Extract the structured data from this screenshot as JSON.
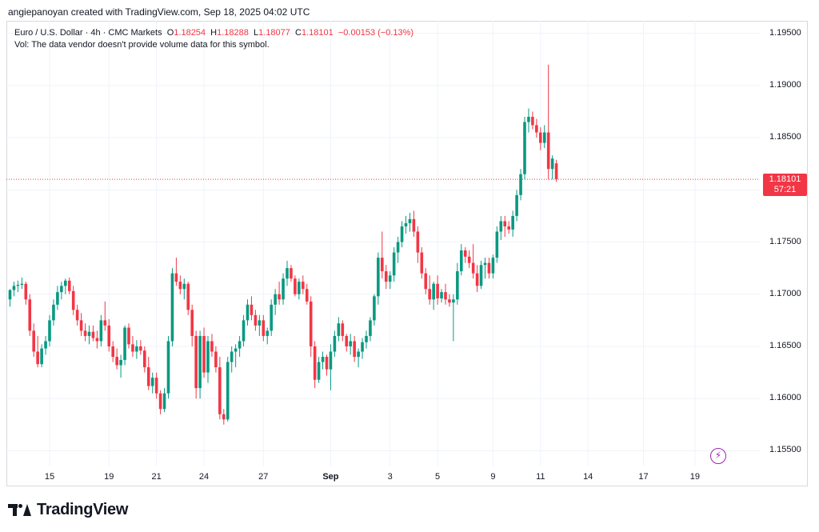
{
  "header": {
    "author_line": "angiepanoyan created with TradingView.com, Sep 18, 2025 04:02 UTC"
  },
  "legend": {
    "symbol": "Euro / U.S. Dollar · 4h · CMC Markets",
    "o_label": "O",
    "o_value": "1.18254",
    "h_label": "H",
    "h_value": "1.18288",
    "l_label": "L",
    "l_value": "1.18077",
    "c_label": "C",
    "c_value": "1.18101",
    "change": "−0.00153 (−0.13%)",
    "volume_note": "Vol: The data vendor doesn't provide volume data for this symbol."
  },
  "price_tag": {
    "price": "1.18101",
    "countdown": "57:21"
  },
  "brand": {
    "name": "TradingView"
  },
  "colors": {
    "up": "#089981",
    "down": "#f23645",
    "grid": "#f0f3fa",
    "accent": "#9c27b0"
  },
  "chart_data": {
    "type": "candlestick",
    "title": "Euro / U.S. Dollar · 4h · CMC Markets",
    "y_axis": {
      "ticks": [
        "1.19500",
        "1.19000",
        "1.18500",
        "1.18000",
        "1.17500",
        "1.17000",
        "1.16500",
        "1.16000",
        "1.15500"
      ],
      "ylim": [
        1.1535,
        1.1962
      ]
    },
    "x_axis": {
      "ticks": [
        {
          "label": "15",
          "i": 10,
          "bold": false
        },
        {
          "label": "19",
          "i": 25,
          "bold": false
        },
        {
          "label": "21",
          "i": 37,
          "bold": false
        },
        {
          "label": "24",
          "i": 49,
          "bold": false
        },
        {
          "label": "27",
          "i": 64,
          "bold": false
        },
        {
          "label": "Sep",
          "i": 81,
          "bold": true
        },
        {
          "label": "3",
          "i": 96,
          "bold": false
        },
        {
          "label": "5",
          "i": 108,
          "bold": false
        },
        {
          "label": "9",
          "i": 122,
          "bold": false
        },
        {
          "label": "11",
          "i": 134,
          "bold": false
        },
        {
          "label": "14",
          "i": 146,
          "bold": false
        },
        {
          "label": "17",
          "i": 160,
          "bold": false
        },
        {
          "label": "19",
          "i": 173,
          "bold": false
        }
      ]
    },
    "last_price": 1.18101,
    "candles": [
      [
        1.1695,
        1.1705,
        1.1688,
        1.1704
      ],
      [
        1.1704,
        1.1712,
        1.1698,
        1.1708
      ],
      [
        1.1708,
        1.1713,
        1.1702,
        1.1709
      ],
      [
        1.1709,
        1.1716,
        1.1705,
        1.171
      ],
      [
        1.171,
        1.1712,
        1.169,
        1.1695
      ],
      [
        1.1695,
        1.17,
        1.166,
        1.1665
      ],
      [
        1.1665,
        1.1672,
        1.164,
        1.1645
      ],
      [
        1.1645,
        1.166,
        1.163,
        1.1633
      ],
      [
        1.1633,
        1.1652,
        1.163,
        1.1648
      ],
      [
        1.1648,
        1.166,
        1.1642,
        1.1655
      ],
      [
        1.1655,
        1.168,
        1.165,
        1.1675
      ],
      [
        1.1675,
        1.1695,
        1.167,
        1.169
      ],
      [
        1.169,
        1.1708,
        1.1685,
        1.1702
      ],
      [
        1.1702,
        1.1712,
        1.1695,
        1.1708
      ],
      [
        1.1708,
        1.1715,
        1.17,
        1.1713
      ],
      [
        1.1713,
        1.1716,
        1.17,
        1.1703
      ],
      [
        1.1703,
        1.1708,
        1.168,
        1.1685
      ],
      [
        1.1685,
        1.169,
        1.167,
        1.1675
      ],
      [
        1.1675,
        1.1682,
        1.166,
        1.1665
      ],
      [
        1.1665,
        1.1672,
        1.1655,
        1.166
      ],
      [
        1.166,
        1.167,
        1.1652,
        1.1664
      ],
      [
        1.1664,
        1.167,
        1.1655,
        1.1658
      ],
      [
        1.1658,
        1.1665,
        1.1648,
        1.1655
      ],
      [
        1.1655,
        1.168,
        1.165,
        1.1675
      ],
      [
        1.1675,
        1.1693,
        1.1665,
        1.167
      ],
      [
        1.167,
        1.1676,
        1.1645,
        1.165
      ],
      [
        1.165,
        1.1655,
        1.1635,
        1.164
      ],
      [
        1.164,
        1.1648,
        1.1628,
        1.1632
      ],
      [
        1.1632,
        1.1642,
        1.162,
        1.1637
      ],
      [
        1.1637,
        1.167,
        1.1632,
        1.1668
      ],
      [
        1.1668,
        1.1672,
        1.1648,
        1.1652
      ],
      [
        1.1652,
        1.166,
        1.164,
        1.1645
      ],
      [
        1.1645,
        1.1656,
        1.1638,
        1.165
      ],
      [
        1.165,
        1.1656,
        1.1642,
        1.1646
      ],
      [
        1.1646,
        1.165,
        1.1625,
        1.163
      ],
      [
        1.163,
        1.164,
        1.1608,
        1.1612
      ],
      [
        1.1612,
        1.1625,
        1.1605,
        1.162
      ],
      [
        1.162,
        1.1625,
        1.16,
        1.1605
      ],
      [
        1.1605,
        1.1608,
        1.1585,
        1.159
      ],
      [
        1.159,
        1.161,
        1.1587,
        1.1605
      ],
      [
        1.1605,
        1.166,
        1.16,
        1.1655
      ],
      [
        1.1655,
        1.1725,
        1.165,
        1.172
      ],
      [
        1.172,
        1.1735,
        1.1708,
        1.1712
      ],
      [
        1.1712,
        1.1718,
        1.17,
        1.1705
      ],
      [
        1.1705,
        1.1715,
        1.1695,
        1.171
      ],
      [
        1.171,
        1.1712,
        1.168,
        1.1685
      ],
      [
        1.1685,
        1.169,
        1.165,
        1.166
      ],
      [
        1.166,
        1.1665,
        1.16,
        1.161
      ],
      [
        1.161,
        1.1665,
        1.16,
        1.166
      ],
      [
        1.166,
        1.1668,
        1.162,
        1.1625
      ],
      [
        1.1625,
        1.166,
        1.1615,
        1.1655
      ],
      [
        1.1655,
        1.1662,
        1.164,
        1.1645
      ],
      [
        1.1645,
        1.165,
        1.1625,
        1.163
      ],
      [
        1.163,
        1.164,
        1.158,
        1.1585
      ],
      [
        1.1585,
        1.159,
        1.1575,
        1.158
      ],
      [
        1.158,
        1.164,
        1.1578,
        1.1635
      ],
      [
        1.1635,
        1.165,
        1.1625,
        1.1645
      ],
      [
        1.1645,
        1.1652,
        1.163,
        1.1648
      ],
      [
        1.1648,
        1.166,
        1.164,
        1.1655
      ],
      [
        1.1655,
        1.168,
        1.165,
        1.1675
      ],
      [
        1.1675,
        1.1695,
        1.167,
        1.169
      ],
      [
        1.169,
        1.1698,
        1.1675,
        1.168
      ],
      [
        1.168,
        1.1685,
        1.1665,
        1.167
      ],
      [
        1.167,
        1.168,
        1.166,
        1.1675
      ],
      [
        1.1675,
        1.168,
        1.1655,
        1.166
      ],
      [
        1.166,
        1.1668,
        1.1652,
        1.1665
      ],
      [
        1.1665,
        1.1695,
        1.166,
        1.169
      ],
      [
        1.169,
        1.1705,
        1.168,
        1.17
      ],
      [
        1.17,
        1.1712,
        1.169,
        1.1695
      ],
      [
        1.1695,
        1.172,
        1.169,
        1.1715
      ],
      [
        1.1715,
        1.1732,
        1.1708,
        1.1725
      ],
      [
        1.1725,
        1.1728,
        1.1712,
        1.1715
      ],
      [
        1.1715,
        1.1718,
        1.1698,
        1.17
      ],
      [
        1.17,
        1.1715,
        1.1695,
        1.1712
      ],
      [
        1.1712,
        1.1718,
        1.17,
        1.1705
      ],
      [
        1.1705,
        1.171,
        1.169,
        1.1693
      ],
      [
        1.1693,
        1.1698,
        1.164,
        1.165
      ],
      [
        1.165,
        1.1655,
        1.161,
        1.1618
      ],
      [
        1.1618,
        1.164,
        1.1615,
        1.1635
      ],
      [
        1.1635,
        1.1645,
        1.1628,
        1.164
      ],
      [
        1.164,
        1.1642,
        1.1622,
        1.1628
      ],
      [
        1.1628,
        1.1652,
        1.1608,
        1.1645
      ],
      [
        1.1645,
        1.1665,
        1.164,
        1.166
      ],
      [
        1.166,
        1.1678,
        1.1655,
        1.1672
      ],
      [
        1.1672,
        1.1675,
        1.1655,
        1.166
      ],
      [
        1.166,
        1.1662,
        1.1645,
        1.165
      ],
      [
        1.165,
        1.1662,
        1.1642,
        1.1655
      ],
      [
        1.1655,
        1.166,
        1.1635,
        1.164
      ],
      [
        1.164,
        1.1648,
        1.163,
        1.1645
      ],
      [
        1.1645,
        1.1658,
        1.1638,
        1.1654
      ],
      [
        1.1654,
        1.1665,
        1.1648,
        1.166
      ],
      [
        1.166,
        1.1678,
        1.1655,
        1.1675
      ],
      [
        1.1675,
        1.17,
        1.167,
        1.1698
      ],
      [
        1.1698,
        1.174,
        1.169,
        1.1735
      ],
      [
        1.1735,
        1.176,
        1.1715,
        1.1722
      ],
      [
        1.1722,
        1.1728,
        1.1705,
        1.1712
      ],
      [
        1.1712,
        1.1722,
        1.1705,
        1.1718
      ],
      [
        1.1718,
        1.1745,
        1.1712,
        1.174
      ],
      [
        1.174,
        1.1755,
        1.173,
        1.175
      ],
      [
        1.175,
        1.177,
        1.1745,
        1.1765
      ],
      [
        1.1765,
        1.1775,
        1.1758,
        1.1768
      ],
      [
        1.1768,
        1.1778,
        1.176,
        1.1772
      ],
      [
        1.1772,
        1.178,
        1.1755,
        1.176
      ],
      [
        1.176,
        1.1765,
        1.173,
        1.174
      ],
      [
        1.174,
        1.1745,
        1.1715,
        1.172
      ],
      [
        1.172,
        1.1725,
        1.17,
        1.1705
      ],
      [
        1.1705,
        1.1718,
        1.169,
        1.1695
      ],
      [
        1.1695,
        1.1712,
        1.1685,
        1.171
      ],
      [
        1.171,
        1.1718,
        1.169,
        1.1696
      ],
      [
        1.1696,
        1.1705,
        1.1692,
        1.1702
      ],
      [
        1.1702,
        1.171,
        1.169,
        1.1695
      ],
      [
        1.1695,
        1.17,
        1.1688,
        1.1692
      ],
      [
        1.1692,
        1.17,
        1.1655,
        1.1695
      ],
      [
        1.1695,
        1.173,
        1.169,
        1.1722
      ],
      [
        1.1722,
        1.1748,
        1.1718,
        1.1742
      ],
      [
        1.1742,
        1.1745,
        1.173,
        1.1736
      ],
      [
        1.1736,
        1.1742,
        1.1725,
        1.173
      ],
      [
        1.173,
        1.1748,
        1.1715,
        1.172
      ],
      [
        1.172,
        1.1728,
        1.1702,
        1.1708
      ],
      [
        1.1708,
        1.1732,
        1.1705,
        1.1728
      ],
      [
        1.1728,
        1.1735,
        1.1715,
        1.173
      ],
      [
        1.173,
        1.1735,
        1.1715,
        1.172
      ],
      [
        1.172,
        1.1738,
        1.1715,
        1.1735
      ],
      [
        1.1735,
        1.1765,
        1.173,
        1.176
      ],
      [
        1.176,
        1.1775,
        1.1752,
        1.177
      ],
      [
        1.177,
        1.1775,
        1.1755,
        1.1765
      ],
      [
        1.1765,
        1.177,
        1.1758,
        1.1762
      ],
      [
        1.1762,
        1.178,
        1.1755,
        1.1775
      ],
      [
        1.1775,
        1.18,
        1.177,
        1.1795
      ],
      [
        1.1795,
        1.182,
        1.179,
        1.1815
      ],
      [
        1.1815,
        1.187,
        1.181,
        1.1865
      ],
      [
        1.1865,
        1.1878,
        1.1855,
        1.187
      ],
      [
        1.187,
        1.1875,
        1.1858,
        1.1862
      ],
      [
        1.1862,
        1.1868,
        1.185,
        1.1855
      ],
      [
        1.1855,
        1.186,
        1.1838,
        1.1845
      ],
      [
        1.1845,
        1.1862,
        1.184,
        1.1855
      ],
      [
        1.1855,
        1.192,
        1.181,
        1.182
      ],
      [
        1.182,
        1.1833,
        1.181,
        1.183
      ],
      [
        1.18254,
        1.18288,
        1.18077,
        1.18101
      ]
    ]
  }
}
